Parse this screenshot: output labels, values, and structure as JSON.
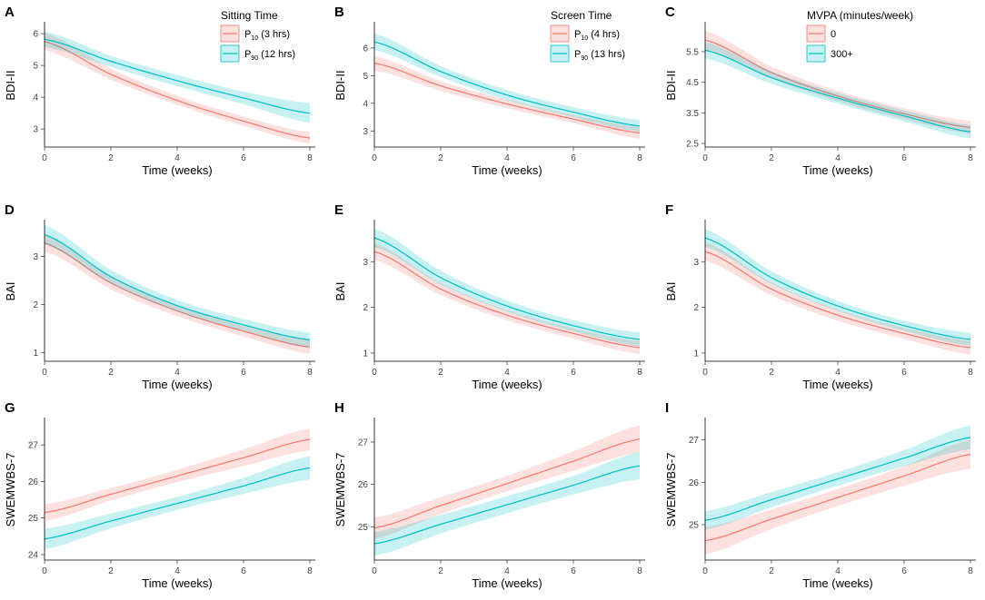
{
  "figure": {
    "colors": {
      "red": "#F8766D",
      "cyan": "#00BFC4"
    }
  },
  "chart_data": [
    {
      "id": "A",
      "type": "line",
      "xlabel": "Time (weeks)",
      "ylabel": "BDI-II",
      "xlim": [
        0,
        8
      ],
      "ylim": [
        2.55,
        6.2
      ],
      "xticks": [
        0,
        2,
        4,
        6,
        8
      ],
      "yticks": [
        3,
        4,
        5,
        6
      ],
      "ytick_labels": [
        "3",
        "4",
        "5",
        "6"
      ],
      "legend": {
        "title": "Sitting Time",
        "position": "top-right",
        "entries": [
          {
            "label": "P",
            "sub": "10",
            "suffix": " (3 hrs)",
            "color": "#F8766D"
          },
          {
            "label": "P",
            "sub": "90",
            "suffix": " (12 hrs)",
            "color": "#00BFC4"
          }
        ]
      },
      "series": [
        {
          "name": "P10 (3 hrs)",
          "color": "#F8766D",
          "x": [
            0,
            2,
            4,
            6,
            8
          ],
          "y": [
            5.75,
            4.72,
            3.9,
            3.25,
            2.72
          ],
          "lower": [
            5.48,
            4.55,
            3.76,
            3.1,
            2.55
          ],
          "upper": [
            6.02,
            4.9,
            4.05,
            3.4,
            2.9
          ]
        },
        {
          "name": "P90 (12 hrs)",
          "color": "#00BFC4",
          "x": [
            0,
            2,
            4,
            6,
            8
          ],
          "y": [
            5.82,
            5.13,
            4.52,
            3.98,
            3.5
          ],
          "lower": [
            5.58,
            4.95,
            4.35,
            3.78,
            3.2
          ],
          "upper": [
            6.06,
            5.3,
            4.7,
            4.18,
            3.82
          ]
        }
      ]
    },
    {
      "id": "B",
      "type": "line",
      "xlabel": "Time (weeks)",
      "ylabel": "BDI-II",
      "xlim": [
        0,
        8
      ],
      "ylim": [
        2.55,
        6.75
      ],
      "xticks": [
        0,
        2,
        4,
        6,
        8
      ],
      "yticks": [
        3,
        4,
        5,
        6
      ],
      "ytick_labels": [
        "3",
        "4",
        "5",
        "6"
      ],
      "legend": {
        "title": "Screen Time",
        "position": "top-right",
        "entries": [
          {
            "label": "P",
            "sub": "10",
            "suffix": " (4 hrs)",
            "color": "#F8766D"
          },
          {
            "label": "P",
            "sub": "90",
            "suffix": " (13 hrs)",
            "color": "#00BFC4"
          }
        ]
      },
      "series": [
        {
          "name": "P10 (4 hrs)",
          "color": "#F8766D",
          "x": [
            0,
            2,
            4,
            6,
            8
          ],
          "y": [
            5.45,
            4.63,
            3.98,
            3.43,
            2.93
          ],
          "lower": [
            5.18,
            4.45,
            3.82,
            3.28,
            2.72
          ],
          "upper": [
            5.7,
            4.8,
            4.14,
            3.58,
            3.14
          ]
        },
        {
          "name": "P90 (13 hrs)",
          "color": "#00BFC4",
          "x": [
            0,
            2,
            4,
            6,
            8
          ],
          "y": [
            6.22,
            5.15,
            4.3,
            3.68,
            3.18
          ],
          "lower": [
            5.92,
            4.95,
            4.12,
            3.5,
            2.98
          ],
          "upper": [
            6.52,
            5.35,
            4.48,
            3.86,
            3.4
          ]
        }
      ]
    },
    {
      "id": "C",
      "type": "line",
      "xlabel": "Time (weeks)",
      "ylabel": "BDI-II",
      "xlim": [
        0,
        8
      ],
      "ylim": [
        2.5,
        6.3
      ],
      "xticks": [
        0,
        2,
        4,
        6,
        8
      ],
      "yticks": [
        2.5,
        3.5,
        4.5,
        5.5
      ],
      "ytick_labels": [
        "2.5",
        "3.5",
        "4.5",
        "5.5"
      ],
      "legend": {
        "title": "MVPA (minutes/week)",
        "position": "top",
        "entries": [
          {
            "label": "0",
            "color": "#F8766D"
          },
          {
            "label": "300+",
            "color": "#00BFC4"
          }
        ]
      },
      "series": [
        {
          "name": "0",
          "color": "#F8766D",
          "x": [
            0,
            2,
            4,
            6,
            8
          ],
          "y": [
            5.88,
            4.82,
            4.05,
            3.47,
            3.02
          ],
          "lower": [
            5.58,
            4.62,
            3.88,
            3.3,
            2.82
          ],
          "upper": [
            6.18,
            5.02,
            4.22,
            3.65,
            3.24
          ]
        },
        {
          "name": "300+",
          "color": "#00BFC4",
          "x": [
            0,
            2,
            4,
            6,
            8
          ],
          "y": [
            5.55,
            4.65,
            3.98,
            3.4,
            2.88
          ],
          "lower": [
            5.28,
            4.45,
            3.8,
            3.22,
            2.66
          ],
          "upper": [
            5.82,
            4.85,
            4.15,
            3.58,
            3.1
          ]
        }
      ]
    },
    {
      "id": "D",
      "type": "line",
      "xlabel": "Time (weeks)",
      "ylabel": "BAI",
      "xlim": [
        0,
        8
      ],
      "ylim": [
        0.9,
        3.65
      ],
      "xticks": [
        0,
        2,
        4,
        6,
        8
      ],
      "yticks": [
        1,
        2,
        3
      ],
      "ytick_labels": [
        "1",
        "2",
        "3"
      ],
      "series": [
        {
          "name": "P10 (3 hrs)",
          "color": "#F8766D",
          "x": [
            0,
            2,
            4,
            6,
            8
          ],
          "y": [
            3.28,
            2.45,
            1.87,
            1.45,
            1.12
          ],
          "lower": [
            3.1,
            2.32,
            1.76,
            1.34,
            0.98
          ],
          "upper": [
            3.46,
            2.58,
            1.98,
            1.56,
            1.26
          ]
        },
        {
          "name": "P90 (12 hrs)",
          "color": "#00BFC4",
          "x": [
            0,
            2,
            4,
            6,
            8
          ],
          "y": [
            3.45,
            2.58,
            1.98,
            1.58,
            1.27
          ],
          "lower": [
            3.25,
            2.44,
            1.86,
            1.46,
            1.12
          ],
          "upper": [
            3.65,
            2.72,
            2.1,
            1.7,
            1.42
          ]
        }
      ]
    },
    {
      "id": "E",
      "type": "line",
      "xlabel": "Time (weeks)",
      "ylabel": "BAI",
      "xlim": [
        0,
        8
      ],
      "ylim": [
        0.9,
        3.8
      ],
      "xticks": [
        0,
        2,
        4,
        6,
        8
      ],
      "yticks": [
        1,
        2,
        3
      ],
      "ytick_labels": [
        "1",
        "2",
        "3"
      ],
      "series": [
        {
          "name": "P10 (4 hrs)",
          "color": "#F8766D",
          "x": [
            0,
            2,
            4,
            6,
            8
          ],
          "y": [
            3.22,
            2.4,
            1.83,
            1.43,
            1.12
          ],
          "lower": [
            3.04,
            2.27,
            1.72,
            1.32,
            0.98
          ],
          "upper": [
            3.4,
            2.53,
            1.94,
            1.54,
            1.26
          ]
        },
        {
          "name": "P90 (13 hrs)",
          "color": "#00BFC4",
          "x": [
            0,
            2,
            4,
            6,
            8
          ],
          "y": [
            3.52,
            2.65,
            2.03,
            1.6,
            1.3
          ],
          "lower": [
            3.32,
            2.5,
            1.91,
            1.48,
            1.15
          ],
          "upper": [
            3.72,
            2.8,
            2.15,
            1.72,
            1.45
          ]
        }
      ]
    },
    {
      "id": "F",
      "type": "line",
      "xlabel": "Time (weeks)",
      "ylabel": "BAI",
      "xlim": [
        0,
        8
      ],
      "ylim": [
        0.9,
        3.8
      ],
      "xticks": [
        0,
        2,
        4,
        6,
        8
      ],
      "yticks": [
        1,
        2,
        3
      ],
      "ytick_labels": [
        "1",
        "2",
        "3"
      ],
      "series": [
        {
          "name": "0",
          "color": "#F8766D",
          "x": [
            0,
            2,
            4,
            6,
            8
          ],
          "y": [
            3.22,
            2.4,
            1.83,
            1.43,
            1.12
          ],
          "lower": [
            3.02,
            2.26,
            1.71,
            1.31,
            0.97
          ],
          "upper": [
            3.42,
            2.54,
            1.95,
            1.55,
            1.27
          ]
        },
        {
          "name": "300+",
          "color": "#00BFC4",
          "x": [
            0,
            2,
            4,
            6,
            8
          ],
          "y": [
            3.52,
            2.65,
            2.03,
            1.6,
            1.3
          ],
          "lower": [
            3.33,
            2.51,
            1.92,
            1.49,
            1.16
          ],
          "upper": [
            3.71,
            2.79,
            2.14,
            1.71,
            1.44
          ]
        }
      ]
    },
    {
      "id": "G",
      "type": "line",
      "xlabel": "Time (weeks)",
      "ylabel": "SWEMWBS-7",
      "xlim": [
        0,
        8
      ],
      "ylim": [
        23.95,
        27.6
      ],
      "xticks": [
        0,
        2,
        4,
        6,
        8
      ],
      "yticks": [
        24,
        25,
        26,
        27
      ],
      "ytick_labels": [
        "24",
        "25",
        "26",
        "27"
      ],
      "series": [
        {
          "name": "P10 (3 hrs)",
          "color": "#F8766D",
          "x": [
            0,
            2,
            4,
            6,
            8
          ],
          "y": [
            25.15,
            25.65,
            26.15,
            26.65,
            27.15
          ],
          "lower": [
            24.92,
            25.48,
            25.98,
            26.42,
            26.85
          ],
          "upper": [
            25.38,
            25.82,
            26.32,
            26.88,
            27.45
          ]
        },
        {
          "name": "P90 (12 hrs)",
          "color": "#00BFC4",
          "x": [
            0,
            2,
            4,
            6,
            8
          ],
          "y": [
            24.43,
            24.92,
            25.4,
            25.88,
            26.37
          ],
          "lower": [
            24.15,
            24.72,
            25.22,
            25.66,
            26.05
          ],
          "upper": [
            24.71,
            25.12,
            25.58,
            26.1,
            26.69
          ]
        }
      ]
    },
    {
      "id": "H",
      "type": "line",
      "xlabel": "Time (weeks)",
      "ylabel": "SWEMWBS-7",
      "xlim": [
        0,
        8
      ],
      "ylim": [
        24.3,
        27.45
      ],
      "xticks": [
        0,
        2,
        4,
        6,
        8
      ],
      "yticks": [
        25,
        26,
        27
      ],
      "ytick_labels": [
        "25",
        "26",
        "27"
      ],
      "series": [
        {
          "name": "P10 (4 hrs)",
          "color": "#F8766D",
          "x": [
            0,
            2,
            4,
            6,
            8
          ],
          "y": [
            24.97,
            25.5,
            26.02,
            26.55,
            27.07
          ],
          "lower": [
            24.72,
            25.3,
            25.84,
            26.32,
            26.75
          ],
          "upper": [
            25.22,
            25.7,
            26.2,
            26.78,
            27.39
          ]
        },
        {
          "name": "P90 (13 hrs)",
          "color": "#00BFC4",
          "x": [
            0,
            2,
            4,
            6,
            8
          ],
          "y": [
            24.6,
            25.06,
            25.52,
            25.98,
            26.44
          ],
          "lower": [
            24.32,
            24.84,
            25.32,
            25.76,
            26.12
          ],
          "upper": [
            24.88,
            25.28,
            25.72,
            26.2,
            26.76
          ]
        }
      ]
    },
    {
      "id": "I",
      "type": "line",
      "xlabel": "Time (weeks)",
      "ylabel": "SWEMWBS-7",
      "xlim": [
        0,
        8
      ],
      "ylim": [
        24.25,
        27.4
      ],
      "xticks": [
        0,
        2,
        4,
        6,
        8
      ],
      "yticks": [
        25,
        26,
        27
      ],
      "ytick_labels": [
        "25",
        "26",
        "27"
      ],
      "series": [
        {
          "name": "0",
          "color": "#F8766D",
          "x": [
            0,
            2,
            4,
            6,
            8
          ],
          "y": [
            24.62,
            25.13,
            25.64,
            26.15,
            26.66
          ],
          "lower": [
            24.3,
            24.9,
            25.44,
            25.92,
            26.32
          ],
          "upper": [
            24.94,
            25.36,
            25.84,
            26.38,
            27.0
          ]
        },
        {
          "name": "300+",
          "color": "#00BFC4",
          "x": [
            0,
            2,
            4,
            6,
            8
          ],
          "y": [
            25.1,
            25.59,
            26.08,
            26.57,
            27.06
          ],
          "lower": [
            24.88,
            25.41,
            25.92,
            26.38,
            26.78
          ],
          "upper": [
            25.32,
            25.77,
            26.24,
            26.76,
            27.34
          ]
        }
      ]
    }
  ]
}
